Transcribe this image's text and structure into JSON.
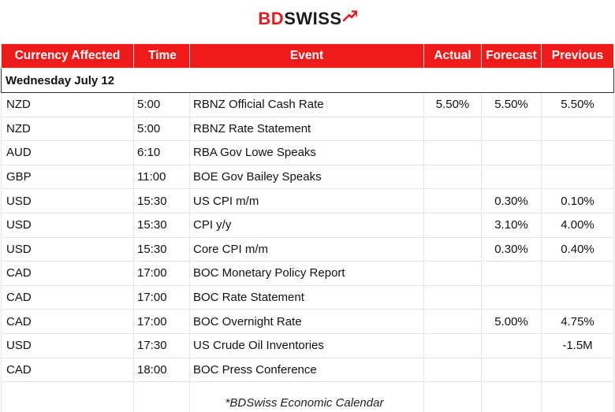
{
  "brand": {
    "bd": "BD",
    "swiss": "SWISS",
    "red": "#e8191f",
    "dark": "#1b1b1b"
  },
  "header": {
    "currency": "Currency Affected",
    "time": "Time",
    "event": "Event",
    "actual": "Actual",
    "forecast": "Forecast",
    "previous": "Previous"
  },
  "day": "Wednesday July 12",
  "rows": [
    {
      "currency": "NZD",
      "time": "5:00",
      "event": "RBNZ Official Cash Rate",
      "actual": "5.50%",
      "forecast": "5.50%",
      "previous": "5.50%"
    },
    {
      "currency": "NZD",
      "time": "5:00",
      "event": "RBNZ Rate Statement",
      "actual": "",
      "forecast": "",
      "previous": ""
    },
    {
      "currency": "AUD",
      "time": "6:10",
      "event": "RBA Gov Lowe Speaks",
      "actual": "",
      "forecast": "",
      "previous": ""
    },
    {
      "currency": "GBP",
      "time": "11:00",
      "event": "BOE Gov Bailey Speaks",
      "actual": "",
      "forecast": "",
      "previous": ""
    },
    {
      "currency": "USD",
      "time": "15:30",
      "event": "US CPI m/m",
      "actual": "",
      "forecast": "0.30%",
      "previous": "0.10%"
    },
    {
      "currency": "USD",
      "time": "15:30",
      "event": "CPI y/y",
      "actual": "",
      "forecast": "3.10%",
      "previous": "4.00%"
    },
    {
      "currency": "USD",
      "time": "15:30",
      "event": "Core CPI m/m",
      "actual": "",
      "forecast": "0.30%",
      "previous": "0.40%"
    },
    {
      "currency": "CAD",
      "time": "17:00",
      "event": "BOC Monetary Policy Report",
      "actual": "",
      "forecast": "",
      "previous": ""
    },
    {
      "currency": "CAD",
      "time": "17:00",
      "event": "BOC Rate Statement",
      "actual": "",
      "forecast": "",
      "previous": ""
    },
    {
      "currency": "CAD",
      "time": "17:00",
      "event": "BOC Overnight Rate",
      "actual": "",
      "forecast": "5.00%",
      "previous": "4.75%"
    },
    {
      "currency": "USD",
      "time": "17:30",
      "event": "US Crude Oil Inventories",
      "actual": "",
      "forecast": "",
      "previous": "-1.5M"
    },
    {
      "currency": "CAD",
      "time": "18:00",
      "event": "BOC Press Conference",
      "actual": "",
      "forecast": "",
      "previous": ""
    }
  ],
  "caption": "*BDSwiss Economic Calendar"
}
